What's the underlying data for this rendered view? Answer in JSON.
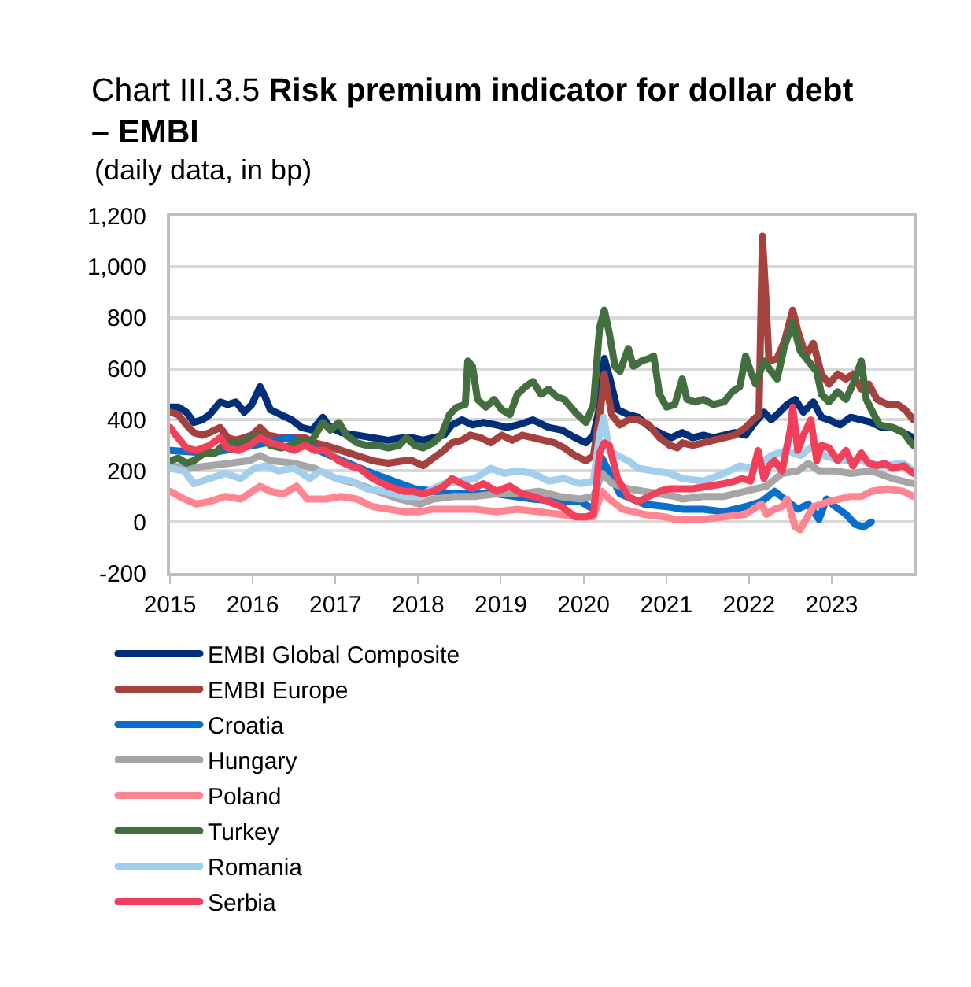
{
  "chart_data": {
    "type": "line",
    "title": "Chart III.3.5 Risk premium indicator for dollar debt – EMBI",
    "subtitle": "(daily data, in bp)",
    "xlim": [
      "2015-01-01",
      "2024-01-01"
    ],
    "xticks": [
      "2015",
      "2016",
      "2017",
      "2018",
      "2019",
      "2020",
      "2021",
      "2022",
      "2023"
    ],
    "ylim": [
      -200,
      1200
    ],
    "yticks": [
      -200,
      0,
      200,
      400,
      600,
      800,
      {
        "value": 1000,
        "label": "1,000"
      },
      {
        "value": 1200,
        "label": "1,200"
      }
    ],
    "grid": "y",
    "legend": "bottom left",
    "series": [
      {
        "name": "EMBI Global Composite",
        "color": "#002f7a",
        "x": [
          "2015-01-02",
          "2015-02-07",
          "2015-03-15",
          "2015-04-16",
          "2015-05-23",
          "2015-06-25",
          "2015-08-11",
          "2015-09-13",
          "2015-10-19",
          "2015-11-25",
          "2015-12-28",
          "2016-02-03",
          "2016-02-25",
          "2016-03-19",
          "2016-05-05",
          "2016-06-21",
          "2016-08-04",
          "2016-09-20",
          "2016-11-06",
          "2016-12-09",
          "2017-01-27",
          "2017-04-05",
          "2017-06-14",
          "2017-08-22",
          "2017-10-30",
          "2017-12-06",
          "2018-01-23",
          "2018-03-08",
          "2018-04-24",
          "2018-05-30",
          "2018-07-13",
          "2018-08-29",
          "2018-10-16",
          "2018-12-13",
          "2019-01-27",
          "2019-03-15",
          "2019-05-23",
          "2019-07-31",
          "2019-09-27",
          "2019-11-25",
          "2020-01-12",
          "2020-02-14",
          "2020-03-12",
          "2020-04-02",
          "2020-04-27",
          "2020-05-30",
          "2020-07-17",
          "2020-08-29",
          "2020-11-06",
          "2020-12-24",
          "2021-01-23",
          "2021-03-12",
          "2021-04-27",
          "2021-06-14",
          "2021-07-28",
          "2021-09-13",
          "2021-10-30",
          "2021-12-17",
          "2022-01-19",
          "2022-03-08",
          "2022-04-09",
          "2022-05-16",
          "2022-06-18",
          "2022-07-24",
          "2022-08-29",
          "2022-10-12",
          "2022-11-17",
          "2022-12-20",
          "2023-02-07",
          "2023-03-26",
          "2023-05-12",
          "2023-06-25",
          "2023-08-11",
          "2023-09-27",
          "2023-11-14",
          "2023-12-28"
        ],
        "values": [
          450,
          450,
          430,
          390,
          400,
          420,
          470,
          460,
          470,
          430,
          460,
          530,
          490,
          440,
          420,
          400,
          370,
          360,
          410,
          370,
          350,
          340,
          330,
          320,
          330,
          330,
          320,
          330,
          340,
          380,
          400,
          380,
          390,
          380,
          370,
          380,
          400,
          370,
          360,
          330,
          310,
          340,
          450,
          640,
          560,
          440,
          420,
          410,
          360,
          340,
          330,
          350,
          330,
          340,
          330,
          340,
          350,
          340,
          380,
          430,
          400,
          430,
          460,
          480,
          430,
          470,
          410,
          400,
          380,
          410,
          400,
          390,
          370,
          370,
          350,
          330
        ]
      },
      {
        "name": "EMBI Europe",
        "color": "#a5423f",
        "x": [
          "2015-01-02",
          "2015-02-07",
          "2015-03-15",
          "2015-04-16",
          "2015-05-23",
          "2015-06-25",
          "2015-08-11",
          "2015-09-13",
          "2015-10-19",
          "2015-11-25",
          "2015-12-28",
          "2016-02-03",
          "2016-03-08",
          "2016-05-05",
          "2016-07-02",
          "2016-08-19",
          "2016-10-01",
          "2016-11-17",
          "2017-01-27",
          "2017-04-05",
          "2017-06-14",
          "2017-08-22",
          "2017-10-30",
          "2017-12-06",
          "2018-01-23",
          "2018-03-08",
          "2018-04-24",
          "2018-05-30",
          "2018-07-13",
          "2018-08-19",
          "2018-10-05",
          "2018-11-17",
          "2019-01-05",
          "2019-02-21",
          "2019-04-05",
          "2019-05-23",
          "2019-07-09",
          "2019-08-26",
          "2019-10-08",
          "2019-11-25",
          "2020-01-12",
          "2020-02-14",
          "2020-03-19",
          "2020-04-02",
          "2020-05-05",
          "2020-06-10",
          "2020-07-17",
          "2020-08-29",
          "2020-10-16",
          "2020-12-02",
          "2021-01-16",
          "2021-02-18",
          "2021-03-12",
          "2021-04-27",
          "2021-06-14",
          "2021-07-28",
          "2021-09-13",
          "2021-10-30",
          "2021-12-17",
          "2022-01-19",
          "2022-02-14",
          "2022-03-01",
          "2022-03-15",
          "2022-03-30",
          "2022-05-05",
          "2022-06-07",
          "2022-07-13",
          "2022-08-04",
          "2022-09-09",
          "2022-10-12",
          "2022-11-17",
          "2022-12-20",
          "2023-01-27",
          "2023-03-05",
          "2023-04-05",
          "2023-05-12",
          "2023-06-14",
          "2023-07-20",
          "2023-09-06",
          "2023-10-19",
          "2023-11-21",
          "2023-12-28"
        ],
        "values": [
          430,
          420,
          380,
          350,
          340,
          350,
          370,
          330,
          320,
          330,
          340,
          370,
          340,
          330,
          330,
          330,
          310,
          300,
          280,
          260,
          240,
          230,
          240,
          240,
          220,
          250,
          280,
          310,
          320,
          340,
          330,
          310,
          340,
          320,
          340,
          330,
          320,
          310,
          290,
          260,
          240,
          260,
          460,
          580,
          420,
          380,
          400,
          400,
          380,
          330,
          300,
          290,
          310,
          300,
          310,
          320,
          330,
          340,
          370,
          400,
          420,
          1120,
          900,
          630,
          640,
          710,
          830,
          750,
          650,
          700,
          580,
          540,
          580,
          560,
          580,
          520,
          540,
          480,
          460,
          460,
          440,
          400
        ]
      },
      {
        "name": "Croatia",
        "color": "#0a6fcc",
        "x": [
          "2015-01-02",
          "2015-06-25",
          "2016-01-08",
          "2016-06-14",
          "2016-12-09",
          "2017-06-14",
          "2017-12-17",
          "2018-06-10",
          "2018-12-13",
          "2019-05-23",
          "2019-09-17",
          "2019-12-17",
          "2020-02-14",
          "2020-03-23",
          "2020-06-10",
          "2020-09-24",
          "2021-01-02",
          "2021-03-12",
          "2021-06-14",
          "2021-09-13",
          "2021-12-17",
          "2022-02-25",
          "2022-04-24",
          "2022-06-07",
          "2022-08-04",
          "2022-09-20",
          "2022-11-06",
          "2022-12-09",
          "2023-01-16",
          "2023-03-05",
          "2023-04-16",
          "2023-05-23",
          "2023-06-25"
        ],
        "values": [
          280,
          270,
          300,
          330,
          260,
          190,
          130,
          110,
          110,
          90,
          80,
          80,
          50,
          250,
          110,
          70,
          60,
          50,
          50,
          40,
          60,
          80,
          120,
          90,
          50,
          70,
          10,
          90,
          60,
          30,
          -10,
          -20,
          0
        ]
      },
      {
        "name": "Hungary",
        "color": "#a6a6a6",
        "x": [
          "2015-01-02",
          "2015-03-26",
          "2015-06-25",
          "2015-09-24",
          "2015-12-17",
          "2016-02-03",
          "2016-03-19",
          "2016-07-02",
          "2016-10-01",
          "2017-01-05",
          "2017-04-05",
          "2017-07-06",
          "2017-10-08",
          "2018-01-08",
          "2018-03-08",
          "2018-06-10",
          "2018-09-09",
          "2018-12-13",
          "2019-03-15",
          "2019-06-18",
          "2019-09-17",
          "2019-12-17",
          "2020-02-14",
          "2020-03-23",
          "2020-05-08",
          "2020-07-17",
          "2020-09-24",
          "2020-12-02",
          "2021-02-10",
          "2021-03-12",
          "2021-06-14",
          "2021-09-13",
          "2021-12-17",
          "2022-03-19",
          "2022-05-27",
          "2022-08-04",
          "2022-09-20",
          "2022-11-06",
          "2023-01-16",
          "2023-03-26",
          "2023-06-25",
          "2023-09-27",
          "2023-12-28"
        ],
        "values": [
          220,
          210,
          220,
          230,
          240,
          260,
          240,
          230,
          210,
          170,
          150,
          120,
          90,
          70,
          90,
          100,
          100,
          110,
          110,
          120,
          100,
          90,
          100,
          190,
          150,
          130,
          120,
          110,
          100,
          90,
          100,
          100,
          120,
          140,
          190,
          200,
          230,
          200,
          200,
          190,
          200,
          170,
          150
        ]
      },
      {
        "name": "Poland",
        "color": "#ff8591",
        "x": [
          "2015-01-02",
          "2015-03-05",
          "2015-04-27",
          "2015-06-25",
          "2015-09-02",
          "2015-11-10",
          "2016-02-03",
          "2016-03-19",
          "2016-05-16",
          "2016-07-13",
          "2016-08-29",
          "2016-11-17",
          "2017-01-27",
          "2017-04-05",
          "2017-06-14",
          "2017-08-22",
          "2017-10-30",
          "2018-01-08",
          "2018-03-08",
          "2018-06-10",
          "2018-09-09",
          "2018-12-13",
          "2019-03-15",
          "2019-06-18",
          "2019-09-17",
          "2019-12-17",
          "2020-02-14",
          "2020-03-23",
          "2020-04-24",
          "2020-06-21",
          "2020-09-24",
          "2020-12-24",
          "2021-02-10",
          "2021-03-12",
          "2021-06-14",
          "2021-09-13",
          "2021-12-17",
          "2022-01-19",
          "2022-02-25",
          "2022-03-19",
          "2022-04-24",
          "2022-05-27",
          "2022-06-18",
          "2022-07-24",
          "2022-08-15",
          "2022-09-09",
          "2022-10-12",
          "2022-11-17",
          "2022-12-20",
          "2023-02-07",
          "2023-03-26",
          "2023-05-12",
          "2023-06-25",
          "2023-09-06",
          "2023-11-14",
          "2023-12-28"
        ],
        "values": [
          120,
          90,
          70,
          80,
          100,
          90,
          140,
          120,
          110,
          140,
          90,
          90,
          100,
          90,
          60,
          50,
          40,
          40,
          50,
          50,
          50,
          40,
          50,
          40,
          30,
          20,
          20,
          120,
          90,
          50,
          30,
          20,
          10,
          10,
          10,
          20,
          30,
          50,
          70,
          30,
          50,
          60,
          90,
          -20,
          -30,
          10,
          60,
          70,
          80,
          90,
          100,
          100,
          120,
          130,
          120,
          100
        ]
      },
      {
        "name": "Turkey",
        "color": "#436e3f",
        "x": [
          "2015-01-02",
          "2015-02-07",
          "2015-03-15",
          "2015-04-16",
          "2015-06-03",
          "2015-07-20",
          "2015-08-22",
          "2015-09-27",
          "2015-11-10",
          "2015-12-17",
          "2016-02-03",
          "2016-03-19",
          "2016-05-05",
          "2016-06-21",
          "2016-08-04",
          "2016-09-20",
          "2016-11-06",
          "2016-12-09",
          "2017-01-16",
          "2017-02-18",
          "2017-04-05",
          "2017-05-19",
          "2017-07-06",
          "2017-08-22",
          "2017-10-08",
          "2017-11-10",
          "2017-12-17",
          "2018-01-23",
          "2018-03-08",
          "2018-04-13",
          "2018-05-19",
          "2018-06-21",
          "2018-07-28",
          "2018-08-08",
          "2018-08-29",
          "2018-09-20",
          "2018-10-27",
          "2018-12-02",
          "2019-01-05",
          "2019-02-10",
          "2019-03-15",
          "2019-04-20",
          "2019-05-23",
          "2019-06-28",
          "2019-07-31",
          "2019-09-06",
          "2019-10-08",
          "2019-11-25",
          "2020-01-12",
          "2020-02-14",
          "2020-03-12",
          "2020-04-02",
          "2020-04-24",
          "2020-05-19",
          "2020-06-10",
          "2020-07-17",
          "2020-08-08",
          "2020-09-13",
          "2020-10-16",
          "2020-11-06",
          "2020-12-02",
          "2021-01-02",
          "2021-02-07",
          "2021-03-12",
          "2021-04-02",
          "2021-05-08",
          "2021-06-14",
          "2021-07-28",
          "2021-09-13",
          "2021-10-19",
          "2021-11-21",
          "2021-12-17",
          "2022-01-08",
          "2022-01-30",
          "2022-03-08",
          "2022-04-09",
          "2022-05-05",
          "2022-06-07",
          "2022-07-13",
          "2022-08-15",
          "2022-09-20",
          "2022-10-27",
          "2022-11-17",
          "2022-12-20",
          "2023-01-27",
          "2023-03-05",
          "2023-04-05",
          "2023-05-12",
          "2023-06-03",
          "2023-06-25",
          "2023-07-31",
          "2023-09-27",
          "2023-11-14",
          "2023-12-17",
          "2023-12-28"
        ],
        "values": [
          240,
          250,
          230,
          240,
          270,
          270,
          300,
          310,
          310,
          330,
          340,
          300,
          290,
          300,
          320,
          320,
          390,
          360,
          390,
          340,
          310,
          300,
          300,
          290,
          300,
          330,
          300,
          290,
          310,
          340,
          420,
          450,
          460,
          630,
          610,
          480,
          450,
          480,
          440,
          420,
          500,
          530,
          550,
          500,
          520,
          490,
          480,
          430,
          390,
          460,
          760,
          830,
          740,
          610,
          590,
          680,
          610,
          630,
          640,
          650,
          500,
          450,
          460,
          560,
          480,
          470,
          480,
          460,
          470,
          510,
          530,
          650,
          590,
          540,
          630,
          590,
          560,
          690,
          780,
          670,
          630,
          590,
          500,
          470,
          510,
          480,
          540,
          630,
          480,
          440,
          380,
          370,
          350,
          310,
          300
        ]
      },
      {
        "name": "Romania",
        "color": "#a3cfee",
        "x": [
          "2015-01-02",
          "2015-03-05",
          "2015-04-16",
          "2015-06-25",
          "2015-09-02",
          "2015-11-10",
          "2016-01-08",
          "2016-02-25",
          "2016-04-24",
          "2016-07-02",
          "2016-09-09",
          "2016-10-27",
          "2017-01-05",
          "2017-03-15",
          "2017-05-19",
          "2017-07-31",
          "2017-10-30",
          "2018-01-08",
          "2018-02-14",
          "2018-04-24",
          "2018-07-02",
          "2018-09-09",
          "2018-11-17",
          "2019-01-16",
          "2019-03-15",
          "2019-05-23",
          "2019-07-31",
          "2019-10-08",
          "2019-12-17",
          "2020-02-14",
          "2020-03-12",
          "2020-03-30",
          "2020-04-24",
          "2020-05-30",
          "2020-07-17",
          "2020-08-29",
          "2020-11-06",
          "2021-01-16",
          "2021-03-12",
          "2021-06-14",
          "2021-09-13",
          "2021-11-21",
          "2022-01-19",
          "2022-04-09",
          "2022-06-18",
          "2022-08-15",
          "2022-10-12",
          "2022-11-28",
          "2023-02-07",
          "2023-05-12",
          "2023-08-11",
          "2023-11-14",
          "2023-12-28"
        ],
        "values": [
          210,
          200,
          150,
          170,
          190,
          170,
          210,
          220,
          200,
          210,
          170,
          200,
          170,
          160,
          130,
          120,
          100,
          100,
          120,
          150,
          160,
          170,
          210,
          190,
          200,
          190,
          160,
          170,
          150,
          160,
          340,
          410,
          280,
          260,
          240,
          210,
          200,
          190,
          170,
          160,
          190,
          220,
          210,
          260,
          280,
          260,
          300,
          260,
          240,
          240,
          220,
          230,
          200
        ]
      },
      {
        "name": "Serbia",
        "color": "#f2405b",
        "x": [
          "2015-01-02",
          "2015-01-27",
          "2015-03-15",
          "2015-04-27",
          "2015-06-25",
          "2015-08-11",
          "2015-09-13",
          "2015-10-30",
          "2015-12-17",
          "2016-02-03",
          "2016-03-19",
          "2016-05-05",
          "2016-07-02",
          "2016-08-19",
          "2016-10-01",
          "2016-11-17",
          "2017-01-16",
          "2017-03-05",
          "2017-04-16",
          "2017-06-14",
          "2017-08-22",
          "2017-10-30",
          "2017-12-06",
          "2018-01-23",
          "2018-03-08",
          "2018-04-24",
          "2018-05-30",
          "2018-07-13",
          "2018-08-29",
          "2018-10-16",
          "2018-12-13",
          "2019-02-10",
          "2019-04-05",
          "2019-05-23",
          "2019-07-31",
          "2019-09-27",
          "2019-11-25",
          "2020-01-12",
          "2020-02-14",
          "2020-03-12",
          "2020-04-02",
          "2020-04-24",
          "2020-05-30",
          "2020-07-17",
          "2020-08-29",
          "2020-10-16",
          "2020-12-02",
          "2021-01-16",
          "2021-02-18",
          "2021-04-27",
          "2021-07-06",
          "2021-09-13",
          "2021-10-30",
          "2021-12-02",
          "2022-01-08",
          "2022-02-10",
          "2022-03-08",
          "2022-03-30",
          "2022-04-24",
          "2022-05-27",
          "2022-07-02",
          "2022-07-13",
          "2022-08-04",
          "2022-08-29",
          "2022-10-01",
          "2022-10-27",
          "2022-11-17",
          "2022-12-20",
          "2023-01-27",
          "2023-03-05",
          "2023-04-05",
          "2023-05-12",
          "2023-06-14",
          "2023-07-20",
          "2023-08-22",
          "2023-09-27",
          "2023-11-14",
          "2023-12-28"
        ],
        "values": [
          370,
          340,
          290,
          280,
          300,
          330,
          290,
          280,
          300,
          330,
          310,
          300,
          280,
          300,
          280,
          280,
          240,
          220,
          210,
          170,
          140,
          120,
          120,
          110,
          120,
          140,
          170,
          150,
          130,
          150,
          120,
          140,
          110,
          100,
          80,
          60,
          20,
          20,
          30,
          270,
          310,
          300,
          170,
          100,
          80,
          100,
          120,
          130,
          130,
          130,
          140,
          150,
          160,
          170,
          160,
          280,
          170,
          220,
          240,
          200,
          360,
          450,
          280,
          340,
          400,
          240,
          300,
          290,
          240,
          280,
          220,
          270,
          230,
          220,
          230,
          210,
          220,
          190
        ]
      }
    ]
  }
}
